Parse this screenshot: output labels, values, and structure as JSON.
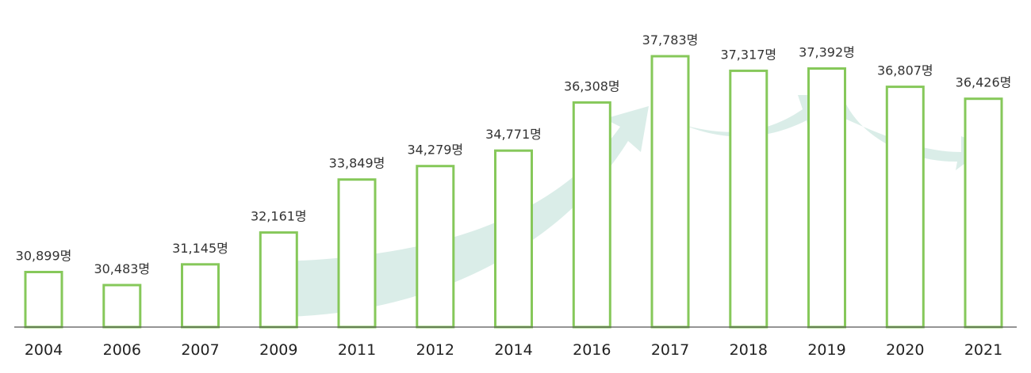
{
  "chart_data": {
    "type": "bar",
    "categories": [
      "2004",
      "2006",
      "2007",
      "2009",
      "2011",
      "2012",
      "2014",
      "2016",
      "2017",
      "2018",
      "2019",
      "2020",
      "2021"
    ],
    "values": [
      30899,
      30483,
      31145,
      32161,
      33849,
      34279,
      34771,
      36308,
      37783,
      37317,
      37392,
      36807,
      36426
    ],
    "value_labels": [
      "30,899명",
      "30,483명",
      "31,145명",
      "32,161명",
      "33,849명",
      "34,279명",
      "34,771명",
      "36,308명",
      "37,783명",
      "37,317명",
      "37,392명",
      "36,807명",
      "36,426명"
    ],
    "title": "",
    "xlabel": "",
    "ylabel": "",
    "grid": false,
    "colors": {
      "bar_outline": "#86c85a",
      "trend_arrow": "#d6ebe6",
      "baseline": "#555555"
    }
  }
}
